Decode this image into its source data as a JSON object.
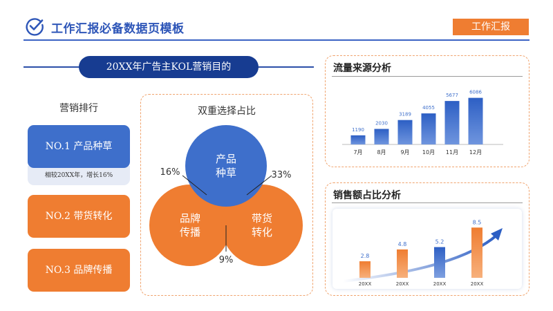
{
  "header": {
    "title": "工作汇报必备数据页模板",
    "badge": "工作汇报"
  },
  "objective": "20XX年广告主KOL营销目的",
  "ranking": {
    "title": "营销排行",
    "items": [
      {
        "label": "NO.1  产品种草",
        "note": "相较20XX年，增长16%"
      },
      {
        "label": "NO.2  带货转化"
      },
      {
        "label": "NO.3  品牌传播"
      }
    ]
  },
  "venn": {
    "title": "双重选择占比",
    "circles": [
      "产品种草",
      "品牌传播",
      "带货转化"
    ],
    "overlaps": [
      {
        "value": "16%",
        "between": "产品种草 & 品牌传播"
      },
      {
        "value": "33%",
        "between": "产品种草 & 带货转化"
      },
      {
        "value": "9%",
        "between": "品牌传播 & 带货转化"
      }
    ],
    "colors": {
      "blue": "#3e6fcb",
      "orange": "#ef7d31"
    }
  },
  "chart_data": [
    {
      "type": "bar",
      "title": "流量来源分析",
      "categories": [
        "7月",
        "8月",
        "9月",
        "10月",
        "11月",
        "12月"
      ],
      "values": [
        1190,
        2030,
        3189,
        4055,
        5677,
        6086
      ],
      "ylim": [
        0,
        6500
      ],
      "grid": false,
      "color": "#3e6fcb"
    },
    {
      "type": "bar",
      "title": "销售额占比分析",
      "categories": [
        "20XX",
        "20XX",
        "20XX",
        "20XX"
      ],
      "values": [
        2.8,
        4.8,
        5.2,
        8.5
      ],
      "colors": [
        "#ef7d31",
        "#ef7d31",
        "#3e6fcb",
        "#ef7d31"
      ],
      "ylim": [
        0,
        9
      ],
      "grid": false
    }
  ]
}
